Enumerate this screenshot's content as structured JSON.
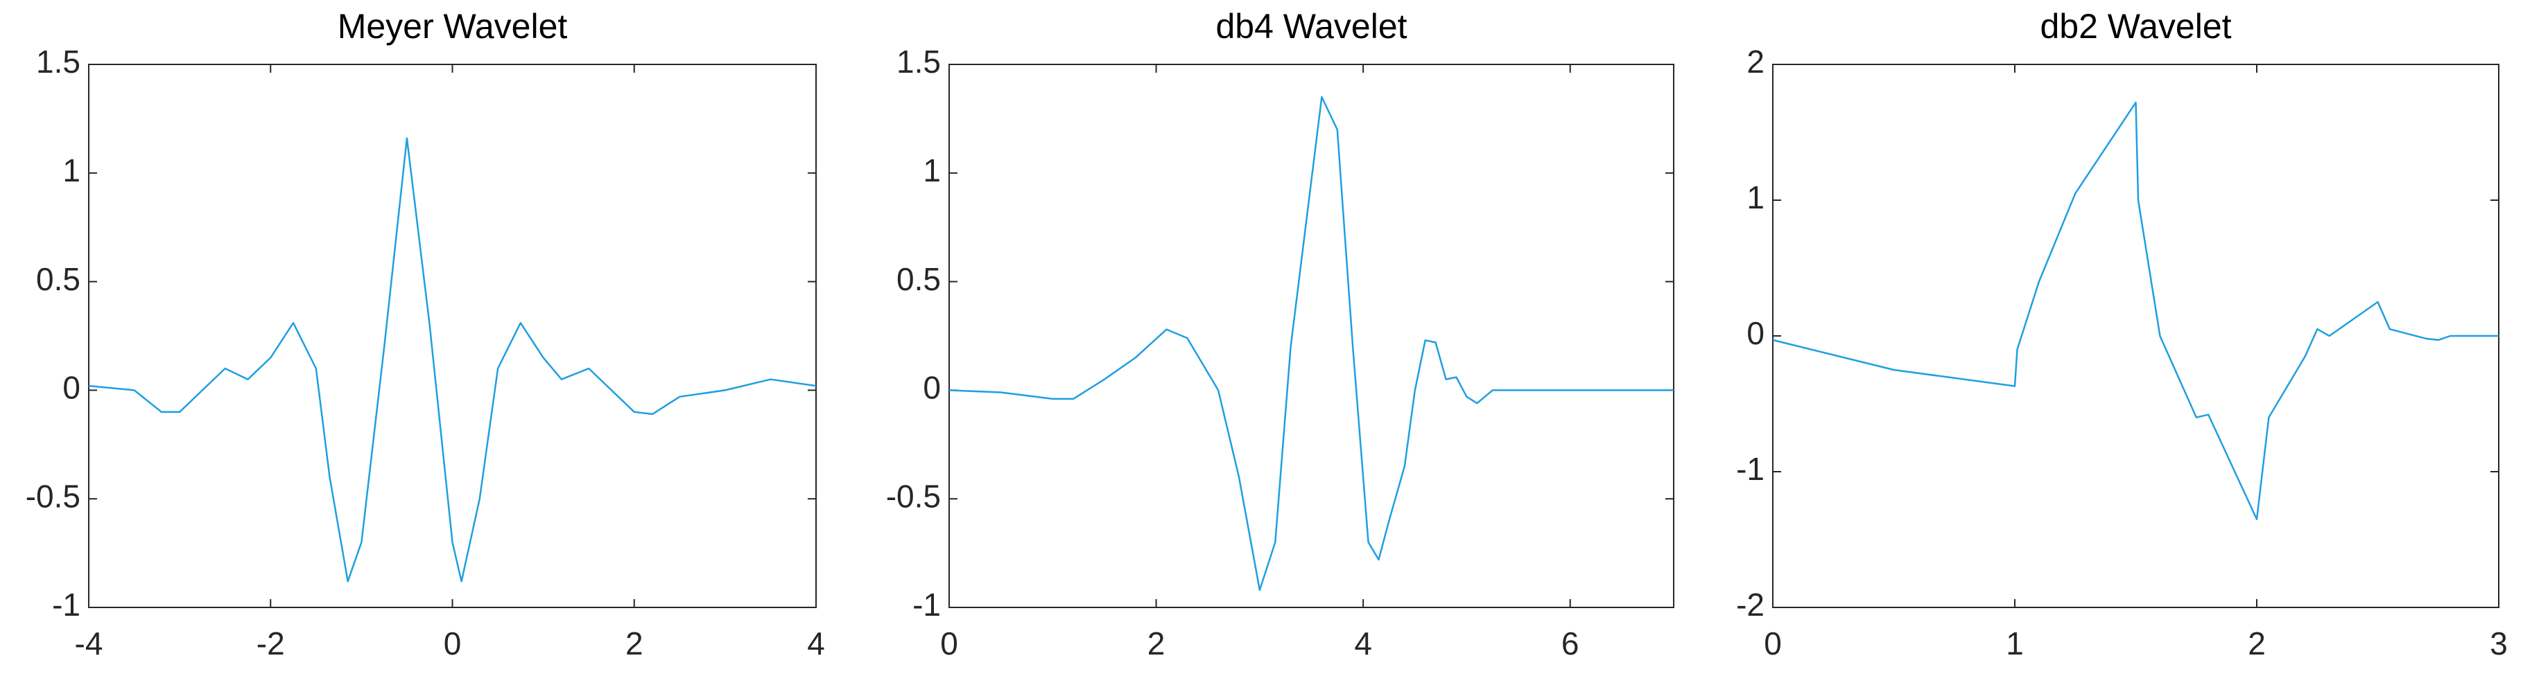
{
  "chart_data": [
    {
      "type": "line",
      "title": "Meyer Wavelet",
      "x": [
        -4,
        -3.5,
        -3.2,
        -3,
        -2.75,
        -2.5,
        -2.25,
        -2,
        -1.75,
        -1.5,
        -1.35,
        -1.15,
        -1,
        -0.75,
        -0.5,
        -0.25,
        0,
        0.1,
        0.3,
        0.5,
        0.75,
        1,
        1.2,
        1.5,
        1.75,
        2,
        2.2,
        2.5,
        3,
        3.5,
        4
      ],
      "series": [
        {
          "color": "#1f9fe0",
          "values": [
            0.02,
            0,
            -0.1,
            -0.1,
            0,
            0.1,
            0.05,
            0.15,
            0.31,
            0.1,
            -0.4,
            -0.88,
            -0.7,
            0.2,
            1.16,
            0.3,
            -0.7,
            -0.88,
            -0.5,
            0.1,
            0.31,
            0.15,
            0.05,
            0.1,
            0,
            -0.1,
            -0.11,
            -0.03,
            0,
            0.05,
            0.02
          ]
        }
      ],
      "xlim": [
        -4,
        4
      ],
      "xticks": [
        -4,
        -2,
        0,
        2,
        4
      ],
      "ylim": [
        -1,
        1.5
      ],
      "yticks": [
        -1,
        -0.5,
        0,
        0.5,
        1,
        1.5
      ]
    },
    {
      "type": "line",
      "title": "db4 Wavelet",
      "x": [
        0,
        0.5,
        1,
        1.2,
        1.5,
        1.8,
        2.1,
        2.3,
        2.6,
        2.8,
        3.0,
        3.15,
        3.3,
        3.6,
        3.75,
        3.9,
        4.05,
        4.15,
        4.25,
        4.4,
        4.5,
        4.6,
        4.7,
        4.8,
        4.9,
        5.0,
        5.1,
        5.25,
        5.5,
        6,
        7
      ],
      "series": [
        {
          "color": "#1f9fe0",
          "values": [
            0,
            -0.01,
            -0.04,
            -0.04,
            0.05,
            0.15,
            0.28,
            0.24,
            0,
            -0.4,
            -0.92,
            -0.7,
            0.2,
            1.35,
            1.2,
            0.2,
            -0.7,
            -0.78,
            -0.6,
            -0.35,
            0,
            0.23,
            0.22,
            0.05,
            0.06,
            -0.03,
            -0.06,
            0,
            0,
            0,
            0
          ]
        }
      ],
      "xlim": [
        0,
        7
      ],
      "xticks": [
        0,
        2,
        4,
        6
      ],
      "ylim": [
        -1,
        1.5
      ],
      "yticks": [
        -1,
        -0.5,
        0,
        0.5,
        1,
        1.5
      ]
    },
    {
      "type": "line",
      "title": "db2 Wavelet",
      "x": [
        0,
        0.5,
        1,
        1.01,
        1.1,
        1.25,
        1.5,
        1.51,
        1.6,
        1.75,
        1.8,
        2,
        2.05,
        2.2,
        2.25,
        2.3,
        2.5,
        2.55,
        2.7,
        2.75,
        2.8,
        3
      ],
      "series": [
        {
          "color": "#1f9fe0",
          "values": [
            -0.03,
            -0.25,
            -0.37,
            -0.1,
            0.4,
            1.05,
            1.72,
            1.0,
            0,
            -0.6,
            -0.58,
            -1.35,
            -0.6,
            -0.15,
            0.05,
            0,
            0.25,
            0.05,
            -0.02,
            -0.03,
            0,
            0
          ]
        }
      ],
      "xlim": [
        0,
        3
      ],
      "xticks": [
        0,
        1,
        2,
        3
      ],
      "ylim": [
        -2,
        2
      ],
      "yticks": [
        -2,
        -1,
        0,
        1,
        2
      ]
    }
  ]
}
